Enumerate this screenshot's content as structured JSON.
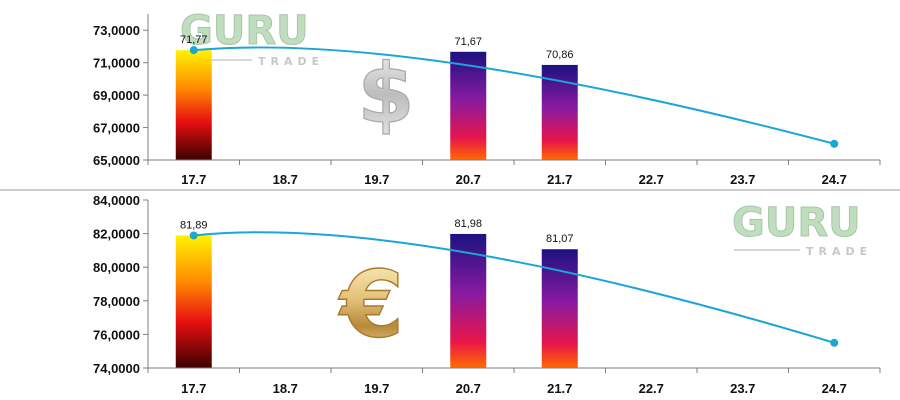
{
  "watermark": {
    "brand": "GURU",
    "sub": "TRADE",
    "color": "#8fc28c"
  },
  "currency_icons": {
    "usd": "$",
    "eur": "€"
  },
  "chart_data": [
    {
      "type": "bar",
      "name": "usd-chart",
      "categories": [
        "17.7",
        "18.7",
        "19.7",
        "20.7",
        "21.7",
        "22.7",
        "23.7",
        "24.7"
      ],
      "values": [
        71.77,
        null,
        null,
        71.67,
        70.86,
        null,
        null,
        null
      ],
      "value_labels": [
        "71,77",
        "",
        "",
        "71,67",
        "70,86",
        "",
        "",
        ""
      ],
      "line": {
        "x": [
          "17.7",
          "24.7"
        ],
        "y": [
          71.77,
          66.0
        ],
        "color": "#1ba6d6"
      },
      "ylim": [
        65,
        74
      ],
      "yticks": [
        65,
        67,
        69,
        71,
        73
      ],
      "ytick_labels": [
        "65,0000",
        "67,0000",
        "69,0000",
        "71,0000",
        "73,0000"
      ],
      "grid": false
    },
    {
      "type": "bar",
      "name": "eur-chart",
      "categories": [
        "17.7",
        "18.7",
        "19.7",
        "20.7",
        "21.7",
        "22.7",
        "23.7",
        "24.7"
      ],
      "values": [
        81.89,
        null,
        null,
        81.98,
        81.07,
        null,
        null,
        null
      ],
      "value_labels": [
        "81,89",
        "",
        "",
        "81,98",
        "81,07",
        "",
        "",
        ""
      ],
      "line": {
        "x": [
          "17.7",
          "24.7"
        ],
        "y": [
          81.89,
          75.5
        ],
        "color": "#1ba6d6"
      },
      "ylim": [
        74,
        84
      ],
      "yticks": [
        74,
        76,
        78,
        80,
        82,
        84
      ],
      "ytick_labels": [
        "74,0000",
        "76,0000",
        "78,0000",
        "80,0000",
        "82,0000",
        "84,0000"
      ],
      "grid": false
    }
  ]
}
